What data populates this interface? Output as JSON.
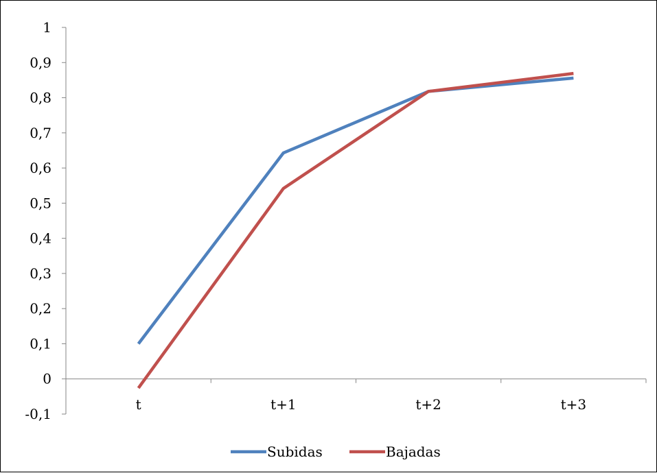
{
  "chart_data": {
    "type": "line",
    "title": "",
    "xlabel": "",
    "ylabel": "",
    "categories": [
      "t",
      "t+1",
      "t+2",
      "t+3"
    ],
    "y_ticks": [
      "1",
      "0,9",
      "0,8",
      "0,7",
      "0,6",
      "0,5",
      "0,4",
      "0,3",
      "0,2",
      "0,1",
      "0",
      "-0,1"
    ],
    "ylim": [
      -0.1,
      1
    ],
    "grid": false,
    "legend_position": "bottom",
    "series": [
      {
        "name": "Subidas",
        "color": "#4F81BD",
        "values": [
          0.1,
          0.643,
          0.818,
          0.856
        ]
      },
      {
        "name": "Bajadas",
        "color": "#C0504D",
        "values": [
          -0.026,
          0.542,
          0.818,
          0.869
        ]
      }
    ]
  }
}
